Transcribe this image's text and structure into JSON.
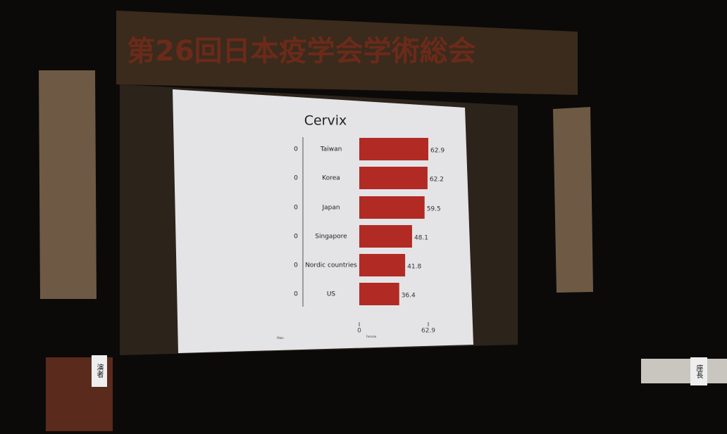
{
  "banner": {
    "title": "第26回日本疫学会学術総会"
  },
  "signs": {
    "speaker": "演者",
    "chair": "座長"
  },
  "chart_data": {
    "type": "bar",
    "title": "Cervix",
    "categories": [
      "Taiwan",
      "Korea",
      "Japan",
      "Singapore",
      "Nordic countries",
      "US"
    ],
    "series": [
      {
        "name": "Male",
        "color": "#b22a24",
        "values": [
          0,
          0,
          0,
          0,
          0,
          0
        ]
      },
      {
        "name": "Female",
        "color": "#b22a24",
        "values": [
          62.9,
          62.2,
          59.5,
          48.1,
          41.8,
          36.4
        ]
      }
    ],
    "xlim": [
      0,
      62.9
    ],
    "xticks": [
      0,
      62.9
    ]
  }
}
